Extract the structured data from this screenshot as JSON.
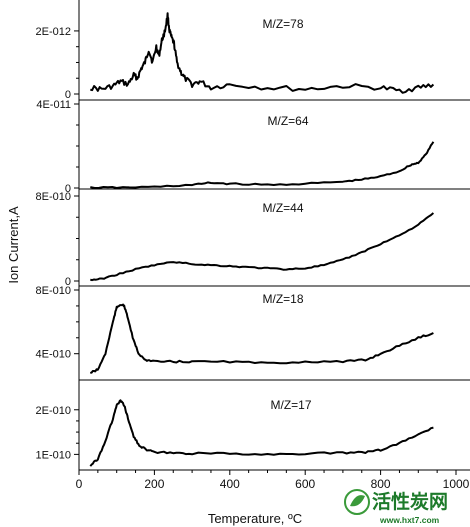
{
  "chart_data": {
    "type": "line",
    "ylabel": "Ion Current,A",
    "xlabel": "Temperature, ºC",
    "xlim": [
      0,
      1000
    ],
    "x_ticks": [
      "0",
      "200",
      "400",
      "600",
      "800",
      "1000"
    ],
    "grid": false,
    "panels": [
      {
        "label": "M/Z=78",
        "ylim": [
          0,
          2.6e-12
        ],
        "y_ticks": [
          "0",
          "2E-012"
        ],
        "x": [
          30,
          60,
          90,
          110,
          130,
          145,
          155,
          165,
          175,
          185,
          195,
          205,
          212,
          220,
          228,
          235,
          240,
          245,
          252,
          260,
          270,
          280,
          300,
          320,
          350,
          400,
          500,
          600,
          700,
          800,
          850,
          900,
          940
        ],
        "values": [
          2e-13,
          1.5e-13,
          2.5e-13,
          4e-13,
          3e-13,
          6e-13,
          5e-13,
          8e-13,
          1e-12,
          1.4e-12,
          1e-12,
          1.5e-12,
          1.2e-12,
          1.7e-12,
          2e-12,
          2.5e-12,
          2e-12,
          1.8e-12,
          1.6e-12,
          1e-12,
          7e-13,
          5e-13,
          3e-13,
          4e-13,
          2e-13,
          3e-13,
          2e-13,
          1.5e-13,
          2.5e-13,
          2e-13,
          1e-13,
          2e-13,
          3e-13
        ]
      },
      {
        "label": "M/Z=64",
        "ylim": [
          0,
          4e-11
        ],
        "y_ticks": [
          "0",
          "4E-011"
        ],
        "x": [
          30,
          100,
          200,
          300,
          350,
          400,
          500,
          600,
          700,
          750,
          800,
          850,
          880,
          900,
          920,
          940
        ],
        "values": [
          2e-13,
          2e-13,
          5e-13,
          1.5e-12,
          2.5e-12,
          2e-12,
          1.5e-12,
          2e-12,
          3e-12,
          4e-12,
          5.5e-12,
          8e-12,
          1.1e-11,
          1.2e-11,
          1.6e-11,
          2.2e-11
        ]
      },
      {
        "label": "M/Z=44",
        "ylim": [
          0,
          8e-10
        ],
        "y_ticks": [
          "0",
          "8E-010"
        ],
        "x": [
          30,
          60,
          100,
          150,
          200,
          250,
          300,
          350,
          400,
          450,
          500,
          550,
          600,
          650,
          700,
          750,
          800,
          850,
          900,
          940
        ],
        "values": [
          1e-11,
          2e-11,
          6e-11,
          1.1e-10,
          1.5e-10,
          1.8e-10,
          1.6e-10,
          1.5e-10,
          1.4e-10,
          1.3e-10,
          1.2e-10,
          1.1e-10,
          1.2e-10,
          1.5e-10,
          2e-10,
          2.7e-10,
          3.5e-10,
          4.3e-10,
          5.3e-10,
          6.4e-10
        ]
      },
      {
        "label": "M/Z=18",
        "ylim": [
          2.6e-10,
          8e-10
        ],
        "y_ticks": [
          "4E-010",
          "8E-010"
        ],
        "x": [
          30,
          50,
          70,
          90,
          100,
          110,
          120,
          130,
          145,
          160,
          180,
          200,
          250,
          300,
          400,
          500,
          600,
          700,
          760,
          800,
          850,
          900,
          940
        ],
        "values": [
          2.8e-10,
          3e-10,
          4e-10,
          6e-10,
          6.9e-10,
          7.1e-10,
          7e-10,
          6.2e-10,
          4.8e-10,
          3.9e-10,
          3.6e-10,
          3.5e-10,
          3.5e-10,
          3.5e-10,
          3.5e-10,
          3.4e-10,
          3.5e-10,
          3.5e-10,
          3.6e-10,
          4e-10,
          4.5e-10,
          5e-10,
          5.3e-10
        ]
      },
      {
        "label": "M/Z=17",
        "ylim": [
          6.5e-11,
          2.6e-10
        ],
        "y_ticks": [
          "1E-010",
          "2E-010"
        ],
        "x": [
          30,
          50,
          70,
          90,
          100,
          110,
          120,
          130,
          145,
          160,
          180,
          200,
          250,
          300,
          400,
          500,
          600,
          700,
          760,
          800,
          850,
          900,
          940
        ],
        "values": [
          7.5e-11,
          9e-11,
          1.3e-10,
          1.8e-10,
          2.1e-10,
          2.2e-10,
          2.1e-10,
          1.8e-10,
          1.4e-10,
          1.2e-10,
          1.1e-10,
          1.05e-10,
          1.03e-10,
          1.02e-10,
          1.02e-10,
          1e-10,
          1.02e-10,
          1.03e-10,
          1.05e-10,
          1.1e-10,
          1.25e-10,
          1.45e-10,
          1.6e-10
        ]
      }
    ]
  },
  "watermark": {
    "brand": "活性炭网",
    "url": "www.hxt7.com"
  }
}
